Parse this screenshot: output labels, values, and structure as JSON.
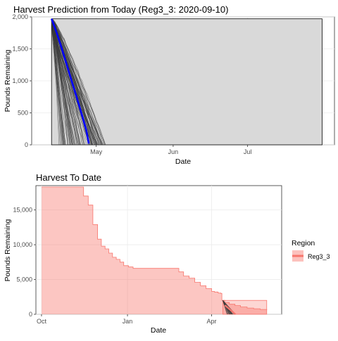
{
  "chart_data": [
    {
      "type": "line",
      "title": "Harvest Prediction from Today (Reg3_3: 2020-09-10)",
      "xlabel": "Date",
      "ylabel": "Pounds Remaining",
      "x_ticks": [
        "May",
        "Jun",
        "Jul"
      ],
      "y_ticks": [
        "0",
        "500",
        "1,000",
        "1,500",
        "2,000"
      ],
      "ylim": [
        0,
        2000
      ],
      "xlim": [
        "2021-04-05",
        "2021-08-05"
      ],
      "grid": true,
      "colors": {
        "simulations": "#3a3a3a",
        "median": "#0000ff",
        "band": "#d9d9d9"
      },
      "prediction_band": {
        "x": [
          "2021-04-13",
          "2021-07-31"
        ],
        "low": 0,
        "high": 1970
      },
      "series": [
        {
          "role": "median",
          "x": [
            "2021-04-13",
            "2021-04-15",
            "2021-04-17",
            "2021-04-19",
            "2021-04-21",
            "2021-04-23",
            "2021-04-25",
            "2021-04-27",
            "2021-04-28"
          ],
          "y": [
            1970,
            1760,
            1520,
            1270,
            1010,
            760,
            500,
            230,
            20
          ]
        }
      ],
      "simulations": {
        "count": 120,
        "start": [
          "2021-04-13",
          1970
        ],
        "end_date_range": [
          "2021-04-16",
          "2021-05-05"
        ]
      }
    },
    {
      "type": "area",
      "title": "Harvest To Date",
      "xlabel": "Date",
      "ylabel": "Pounds Remaining",
      "x_ticks": [
        "Oct",
        "Jan",
        "Apr"
      ],
      "y_ticks": [
        "0",
        "5,000",
        "10,000",
        "15,000"
      ],
      "ylim": [
        0,
        18500
      ],
      "xlim": [
        "2020-09-25",
        "2021-06-15"
      ],
      "grid": true,
      "legend": {
        "title": "Region",
        "position": "right",
        "entries": [
          "Reg3_3"
        ]
      },
      "colors": {
        "fill": "#f8766d",
        "line": "#f8766d",
        "prediction_lines": "#3a3a3a"
      },
      "series": [
        {
          "name": "Reg3_3",
          "x": [
            "2020-10-01",
            "2020-11-15",
            "2020-11-20",
            "2020-11-25",
            "2020-11-30",
            "2020-12-04",
            "2020-12-08",
            "2020-12-12",
            "2020-12-16",
            "2020-12-20",
            "2020-12-24",
            "2020-12-28",
            "2021-01-02",
            "2021-01-07",
            "2021-02-01",
            "2021-02-25",
            "2021-03-02",
            "2021-03-08",
            "2021-03-14",
            "2021-03-20",
            "2021-03-26",
            "2021-04-01",
            "2021-04-04",
            "2021-04-08",
            "2021-04-11",
            "2021-04-12",
            "2021-04-15",
            "2021-04-20",
            "2021-04-26",
            "2021-05-02",
            "2021-05-09",
            "2021-05-16",
            "2021-05-23",
            "2021-05-30"
          ],
          "y": [
            18300,
            17000,
            15700,
            12900,
            10800,
            9800,
            9400,
            8800,
            8200,
            7900,
            7500,
            7000,
            6800,
            6600,
            6600,
            6100,
            5500,
            5200,
            4600,
            4100,
            3700,
            3300,
            3200,
            3050,
            3000,
            2000,
            1700,
            1450,
            1250,
            1050,
            900,
            800,
            700,
            600
          ]
        }
      ],
      "prediction_overlay": {
        "x": [
          "2021-04-13",
          "2021-05-30"
        ],
        "low": 0,
        "high": 2000
      }
    }
  ]
}
